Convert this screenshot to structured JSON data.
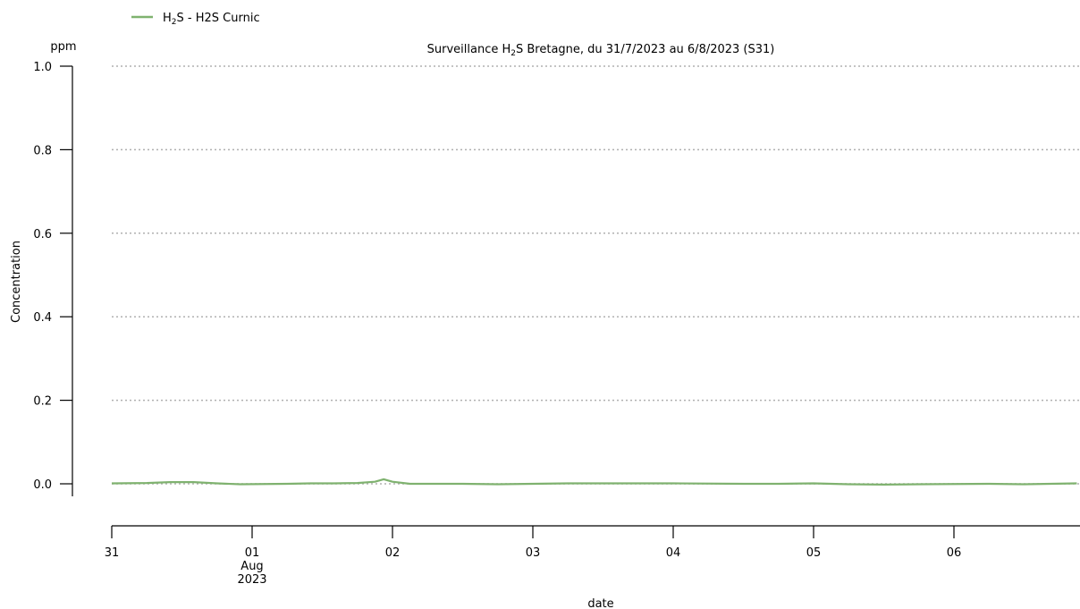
{
  "chart_data": {
    "type": "line",
    "title": {
      "prefix": "Surveillance H",
      "sub": "2",
      "suffix": "S Bretagne, du 31/7/2023 au 6/8/2023 (S31)"
    },
    "xlabel": "date",
    "ylabel": "Concentration",
    "yunit": "ppm",
    "ylim": [
      0.0,
      1.0
    ],
    "yticks": [
      0.0,
      0.2,
      0.4,
      0.6,
      0.8,
      1.0
    ],
    "ytick_labels": [
      "0.0",
      "0.2",
      "0.4",
      "0.6",
      "0.8",
      "1.0"
    ],
    "grid": "horizontal dotted",
    "xlim": [
      "2023-07-31T00:00",
      "2023-08-06T21:00"
    ],
    "xticks": [
      {
        "date": "2023-07-31T00:00",
        "label": [
          "31"
        ]
      },
      {
        "date": "2023-08-01T00:00",
        "label": [
          "01",
          "Aug",
          "2023"
        ]
      },
      {
        "date": "2023-08-02T00:00",
        "label": [
          "02"
        ]
      },
      {
        "date": "2023-08-03T00:00",
        "label": [
          "03"
        ]
      },
      {
        "date": "2023-08-04T00:00",
        "label": [
          "04"
        ]
      },
      {
        "date": "2023-08-05T00:00",
        "label": [
          "05"
        ]
      },
      {
        "date": "2023-08-06T00:00",
        "label": [
          "06"
        ]
      }
    ],
    "legend": {
      "position": "top-left"
    },
    "series": [
      {
        "name": {
          "prefix": "H",
          "sub": "2",
          "suffix": "S - H2S Curnic"
        },
        "color": "#7fb26f",
        "points": [
          [
            "2023-07-31T00:00",
            0.001
          ],
          [
            "2023-07-31T06:00",
            0.002
          ],
          [
            "2023-07-31T10:00",
            0.004
          ],
          [
            "2023-07-31T14:00",
            0.004
          ],
          [
            "2023-07-31T18:00",
            0.001
          ],
          [
            "2023-07-31T22:00",
            -0.001
          ],
          [
            "2023-08-01T06:00",
            0.0
          ],
          [
            "2023-08-01T10:00",
            0.001
          ],
          [
            "2023-08-01T14:00",
            0.001
          ],
          [
            "2023-08-01T18:00",
            0.002
          ],
          [
            "2023-08-01T21:00",
            0.005
          ],
          [
            "2023-08-01T22:30",
            0.011
          ],
          [
            "2023-08-02T00:00",
            0.005
          ],
          [
            "2023-08-02T03:00",
            0.0
          ],
          [
            "2023-08-02T12:00",
            0.0
          ],
          [
            "2023-08-02T18:00",
            -0.001
          ],
          [
            "2023-08-03T06:00",
            0.001
          ],
          [
            "2023-08-03T12:00",
            0.001
          ],
          [
            "2023-08-04T00:00",
            0.001
          ],
          [
            "2023-08-04T12:00",
            0.0
          ],
          [
            "2023-08-04T18:00",
            0.0
          ],
          [
            "2023-08-05T00:00",
            0.001
          ],
          [
            "2023-08-05T06:00",
            -0.001
          ],
          [
            "2023-08-05T12:00",
            -0.002
          ],
          [
            "2023-08-05T18:00",
            -0.001
          ],
          [
            "2023-08-06T06:00",
            0.0
          ],
          [
            "2023-08-06T12:00",
            -0.001
          ],
          [
            "2023-08-06T21:00",
            0.001
          ]
        ]
      }
    ]
  }
}
